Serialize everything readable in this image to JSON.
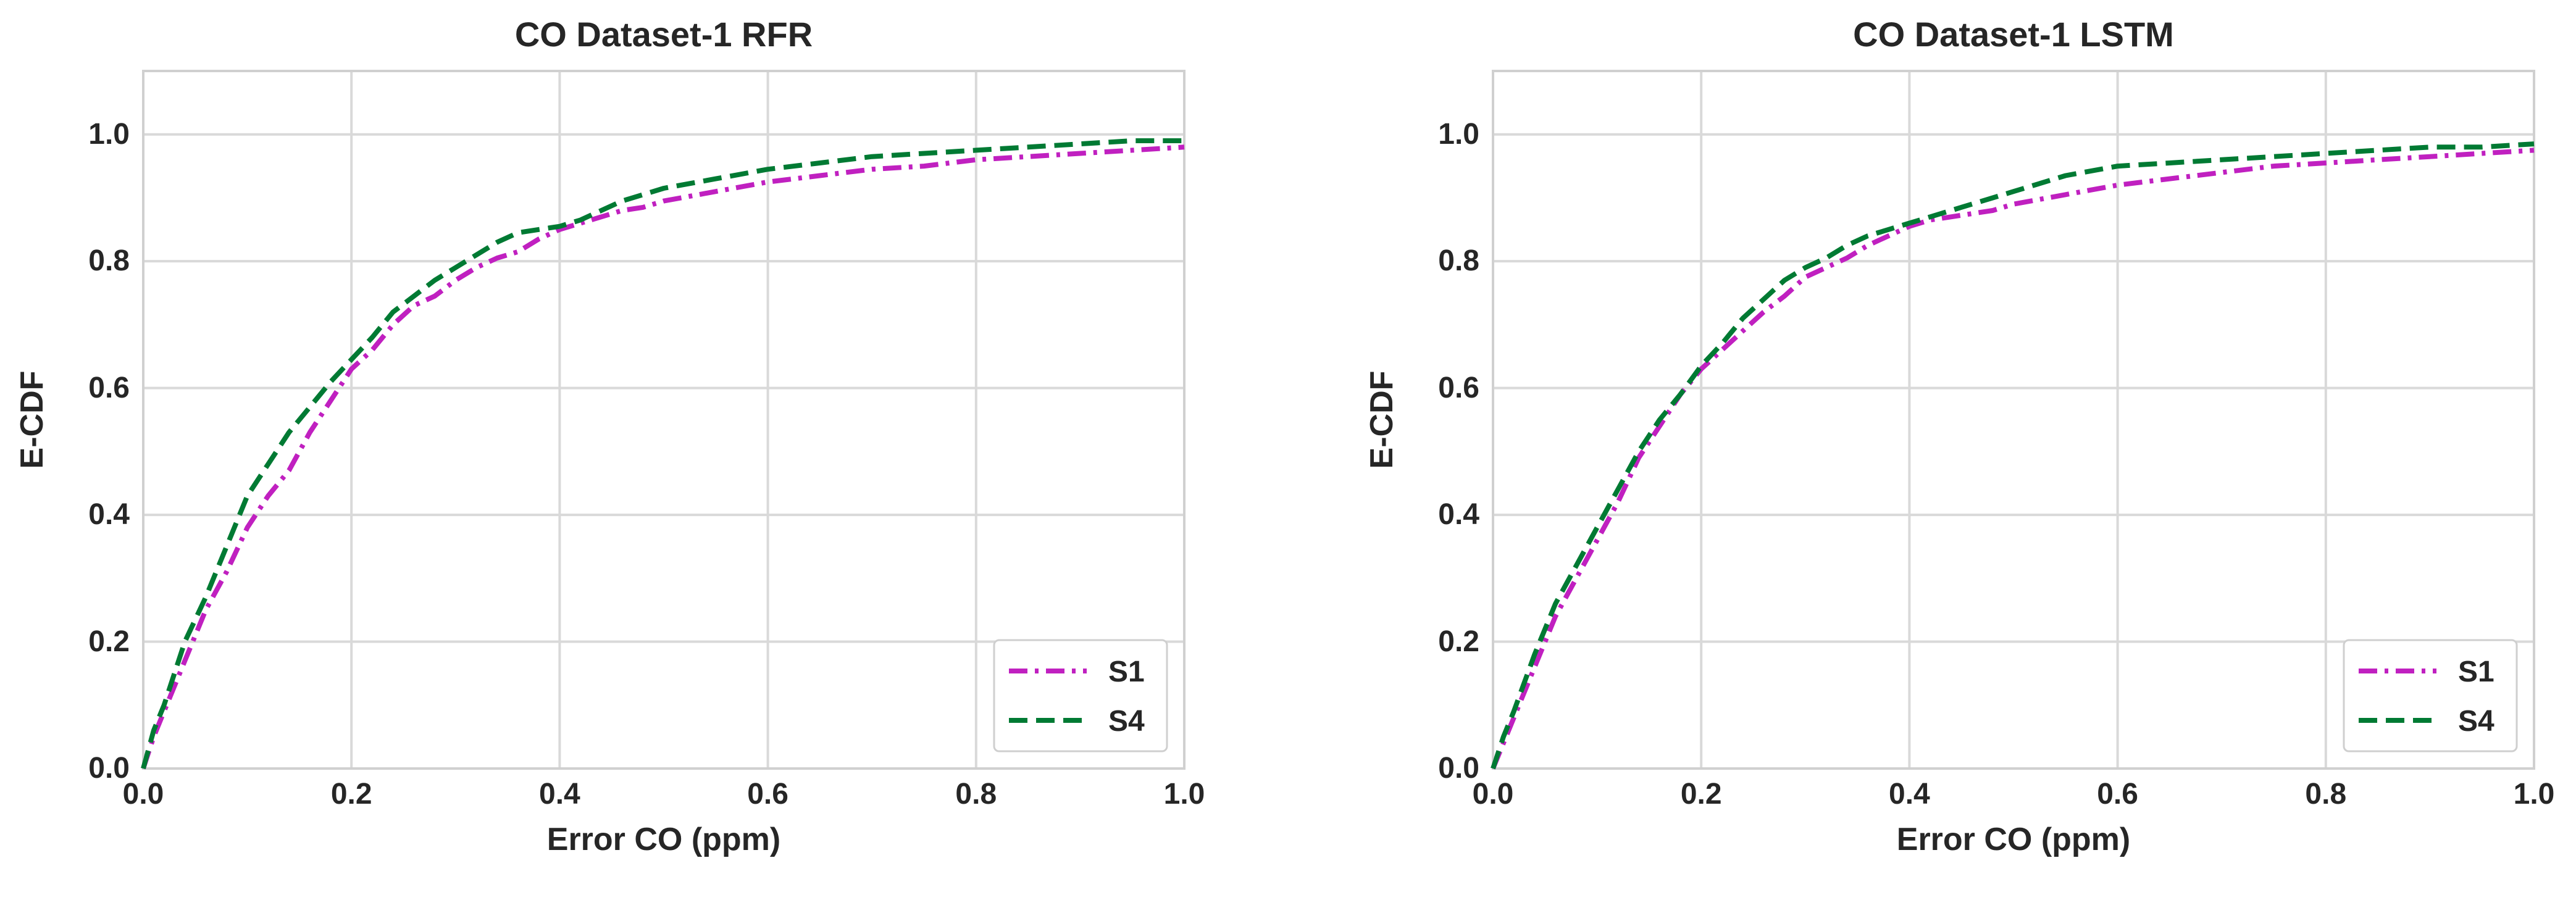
{
  "chart_data": [
    {
      "type": "line",
      "title": "CO Dataset-1 RFR",
      "xlabel": "Error CO (ppm)",
      "ylabel": "E-CDF",
      "xlim": [
        0,
        1.0
      ],
      "ylim": [
        0,
        1.1
      ],
      "xticks": [
        "0.0",
        "0.2",
        "0.4",
        "0.6",
        "0.8",
        "1.0"
      ],
      "yticks": [
        "0.0",
        "0.2",
        "0.4",
        "0.6",
        "0.8",
        "1.0"
      ],
      "grid": true,
      "legend_position": "lower-right",
      "series": [
        {
          "name": "S1",
          "color": "#c020c0",
          "dash": "dash-dot",
          "x": [
            0,
            0.01,
            0.02,
            0.04,
            0.06,
            0.08,
            0.1,
            0.12,
            0.14,
            0.16,
            0.18,
            0.2,
            0.22,
            0.24,
            0.26,
            0.28,
            0.3,
            0.32,
            0.34,
            0.36,
            0.38,
            0.4,
            0.42,
            0.44,
            0.46,
            0.48,
            0.5,
            0.55,
            0.6,
            0.65,
            0.7,
            0.75,
            0.8,
            0.85,
            0.9,
            0.95,
            1.0
          ],
          "y": [
            0,
            0.05,
            0.09,
            0.17,
            0.25,
            0.31,
            0.38,
            0.43,
            0.47,
            0.53,
            0.58,
            0.63,
            0.66,
            0.7,
            0.73,
            0.745,
            0.77,
            0.79,
            0.805,
            0.815,
            0.835,
            0.85,
            0.86,
            0.87,
            0.88,
            0.885,
            0.895,
            0.91,
            0.925,
            0.935,
            0.945,
            0.95,
            0.96,
            0.965,
            0.97,
            0.975,
            0.98
          ]
        },
        {
          "name": "S4",
          "color": "#007a33",
          "dash": "dashed",
          "x": [
            0,
            0.01,
            0.02,
            0.04,
            0.06,
            0.08,
            0.1,
            0.12,
            0.14,
            0.16,
            0.18,
            0.2,
            0.22,
            0.24,
            0.26,
            0.28,
            0.3,
            0.32,
            0.34,
            0.36,
            0.38,
            0.4,
            0.42,
            0.44,
            0.46,
            0.48,
            0.5,
            0.55,
            0.6,
            0.65,
            0.7,
            0.75,
            0.8,
            0.85,
            0.9,
            0.95,
            1.0
          ],
          "y": [
            0,
            0.06,
            0.1,
            0.2,
            0.27,
            0.35,
            0.43,
            0.48,
            0.53,
            0.57,
            0.61,
            0.645,
            0.68,
            0.72,
            0.745,
            0.77,
            0.79,
            0.81,
            0.83,
            0.845,
            0.85,
            0.855,
            0.865,
            0.88,
            0.895,
            0.905,
            0.915,
            0.93,
            0.945,
            0.955,
            0.965,
            0.97,
            0.975,
            0.98,
            0.985,
            0.99,
            0.99
          ]
        }
      ]
    },
    {
      "type": "line",
      "title": "CO Dataset-1 LSTM",
      "xlabel": "Error CO (ppm)",
      "ylabel": "E-CDF",
      "xlim": [
        0,
        1.0
      ],
      "ylim": [
        0,
        1.1
      ],
      "xticks": [
        "0.0",
        "0.2",
        "0.4",
        "0.6",
        "0.8",
        "1.0"
      ],
      "yticks": [
        "0.0",
        "0.2",
        "0.4",
        "0.6",
        "0.8",
        "1.0"
      ],
      "grid": true,
      "legend_position": "lower-right",
      "series": [
        {
          "name": "S1",
          "color": "#c020c0",
          "dash": "dash-dot",
          "x": [
            0,
            0.01,
            0.02,
            0.04,
            0.06,
            0.08,
            0.1,
            0.12,
            0.14,
            0.16,
            0.18,
            0.2,
            0.22,
            0.24,
            0.26,
            0.28,
            0.3,
            0.32,
            0.34,
            0.36,
            0.38,
            0.4,
            0.42,
            0.44,
            0.46,
            0.48,
            0.5,
            0.55,
            0.6,
            0.65,
            0.7,
            0.75,
            0.8,
            0.85,
            0.9,
            0.95,
            1.0
          ],
          "y": [
            0,
            0.04,
            0.08,
            0.16,
            0.24,
            0.3,
            0.36,
            0.42,
            0.49,
            0.54,
            0.59,
            0.63,
            0.66,
            0.69,
            0.72,
            0.745,
            0.775,
            0.79,
            0.805,
            0.825,
            0.84,
            0.855,
            0.865,
            0.87,
            0.875,
            0.88,
            0.89,
            0.905,
            0.92,
            0.93,
            0.94,
            0.95,
            0.955,
            0.96,
            0.965,
            0.97,
            0.975
          ]
        },
        {
          "name": "S4",
          "color": "#007a33",
          "dash": "dashed",
          "x": [
            0,
            0.01,
            0.02,
            0.04,
            0.06,
            0.08,
            0.1,
            0.12,
            0.14,
            0.16,
            0.18,
            0.2,
            0.22,
            0.24,
            0.26,
            0.28,
            0.3,
            0.32,
            0.34,
            0.36,
            0.38,
            0.4,
            0.42,
            0.44,
            0.46,
            0.48,
            0.5,
            0.55,
            0.6,
            0.65,
            0.7,
            0.75,
            0.8,
            0.85,
            0.9,
            0.95,
            1.0
          ],
          "y": [
            0,
            0.05,
            0.09,
            0.18,
            0.26,
            0.32,
            0.38,
            0.44,
            0.5,
            0.55,
            0.59,
            0.635,
            0.67,
            0.71,
            0.74,
            0.77,
            0.79,
            0.805,
            0.825,
            0.84,
            0.85,
            0.86,
            0.87,
            0.88,
            0.89,
            0.9,
            0.91,
            0.935,
            0.95,
            0.955,
            0.96,
            0.965,
            0.97,
            0.975,
            0.98,
            0.98,
            0.985
          ]
        }
      ]
    }
  ]
}
